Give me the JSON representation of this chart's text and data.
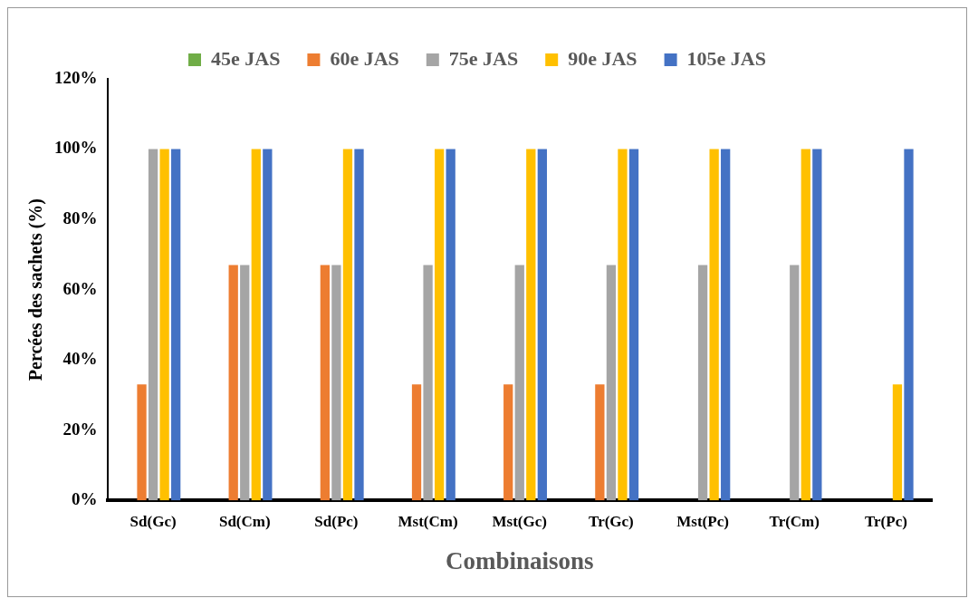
{
  "chart_data": {
    "type": "bar",
    "xlabel": "Combinaisons",
    "ylabel": "Percées des sachets (%)",
    "categories": [
      "Sd(Gc)",
      "Sd(Cm)",
      "Sd(Pc)",
      "Mst(Cm)",
      "Mst(Gc)",
      "Tr(Gc)",
      "Mst(Pc)",
      "Tr(Cm)",
      "Tr(Pc)"
    ],
    "series": [
      {
        "name": "45e JAS",
        "color": "#70ad47",
        "values": [
          0,
          0,
          0,
          0,
          0,
          0,
          0,
          0,
          0
        ]
      },
      {
        "name": "60e JAS",
        "color": "#ed7d31",
        "values": [
          33,
          67,
          67,
          33,
          33,
          33,
          0,
          0,
          0
        ]
      },
      {
        "name": "75e JAS",
        "color": "#a5a5a5",
        "values": [
          100,
          67,
          67,
          67,
          67,
          67,
          67,
          67,
          0
        ]
      },
      {
        "name": "90e JAS",
        "color": "#ffc000",
        "values": [
          100,
          100,
          100,
          100,
          100,
          100,
          100,
          100,
          33
        ]
      },
      {
        "name": "105e JAS",
        "color": "#4472c4",
        "values": [
          100,
          100,
          100,
          100,
          100,
          100,
          100,
          100,
          100
        ]
      }
    ],
    "ylim": [
      0,
      120
    ],
    "yticks": [
      {
        "value": 0,
        "label": "0%"
      },
      {
        "value": 20,
        "label": "20%"
      },
      {
        "value": 40,
        "label": "40%"
      },
      {
        "value": 60,
        "label": "60%"
      },
      {
        "value": 80,
        "label": "80%"
      },
      {
        "value": 100,
        "label": "100%"
      },
      {
        "value": 120,
        "label": "120%"
      }
    ],
    "grid": false,
    "legend": "top"
  }
}
